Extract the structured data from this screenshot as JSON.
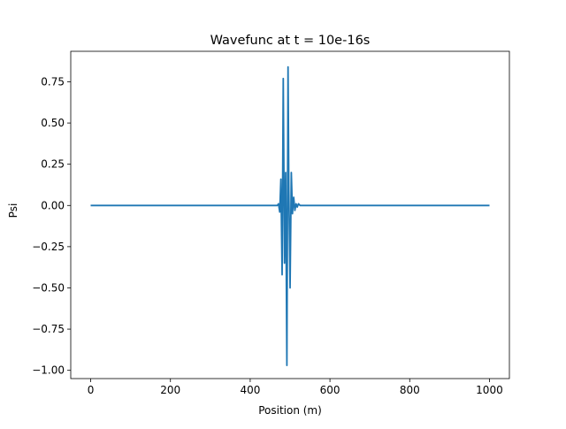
{
  "chart_data": {
    "type": "line",
    "title": "Wavefunc at t = 10e-16s",
    "xlabel": "Position (m)",
    "ylabel": "Psi",
    "xlim": [
      -50,
      1050
    ],
    "ylim": [
      -1.05,
      0.935
    ],
    "xticks": [
      0,
      200,
      400,
      600,
      800,
      1000
    ],
    "xtick_labels": [
      "0",
      "200",
      "400",
      "600",
      "800",
      "1000"
    ],
    "yticks": [
      -1.0,
      -0.75,
      -0.5,
      -0.25,
      0.0,
      0.25,
      0.5,
      0.75
    ],
    "ytick_labels": [
      "−1.00",
      "−0.75",
      "−0.50",
      "−0.25",
      "0.00",
      "0.25",
      "0.50",
      "0.75"
    ],
    "grid": false,
    "series": [
      {
        "color": "#1f77b4",
        "x": [
          0,
          460,
          468,
          471,
          474,
          477,
          480,
          483,
          486,
          489,
          492,
          495,
          497,
          500,
          503,
          506,
          509,
          512,
          515,
          518,
          521,
          525,
          530,
          1000
        ],
        "values": [
          0,
          0,
          0,
          0.01,
          -0.04,
          0.16,
          -0.42,
          0.77,
          -0.35,
          0.2,
          -0.97,
          0.84,
          0.1,
          -0.5,
          0.2,
          -0.05,
          0.05,
          -0.03,
          0.01,
          -0.01,
          0.01,
          0,
          0,
          0
        ]
      }
    ]
  }
}
